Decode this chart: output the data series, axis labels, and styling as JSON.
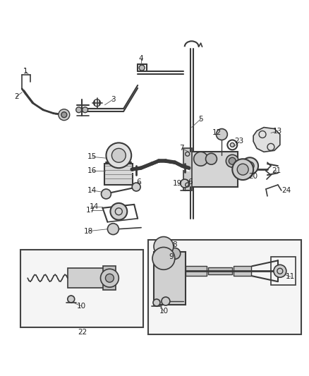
{
  "bg_color": "#ffffff",
  "line_color": "#3a3a3a",
  "text_color": "#222222",
  "fig_width": 4.38,
  "fig_height": 5.33,
  "dpi": 100
}
